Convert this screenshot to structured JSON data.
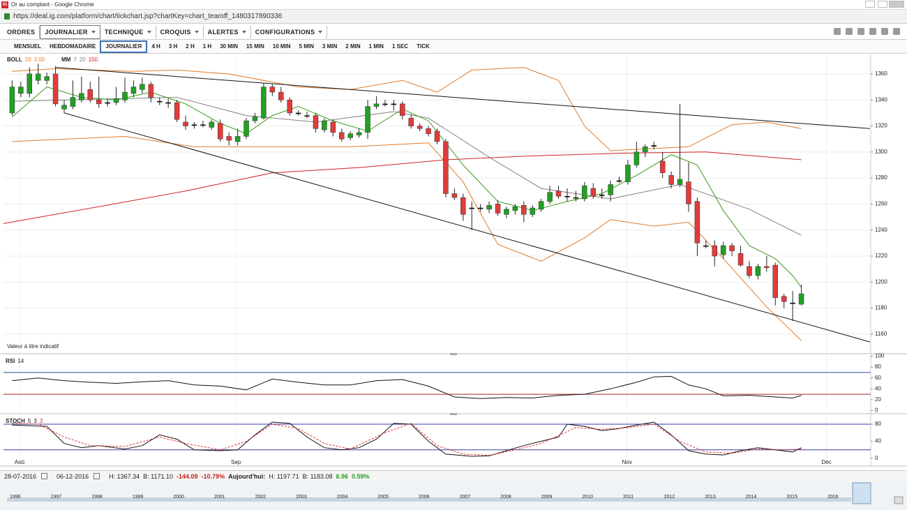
{
  "window": {
    "title": "Or au comptant - Google Chrome",
    "url": "https://deal.ig.com/platform/chart/tickchart.jsp?chartKey=chart_tearoff_1480317890336"
  },
  "menu": [
    "ORDRES",
    "JOURNALIER",
    "TECHNIQUE",
    "CROQUIS",
    "ALERTES",
    "CONFIGURATIONS"
  ],
  "timeframes": [
    "MENSUEL",
    "HEBDOMADAIRE",
    "JOURNALIER",
    "4 H",
    "3 H",
    "2 H",
    "1 H",
    "30 MIN",
    "15 MIN",
    "10 MIN",
    "5 MIN",
    "3 MIN",
    "2 MIN",
    "1 MIN",
    "1 SEC",
    "TICK"
  ],
  "status": {
    "start": "28-07-2016",
    "end": "06-12-2016",
    "high": "H: 1367.34",
    "low": "B: 1171.10",
    "change": "-144.09",
    "change_pct": "-10.79%",
    "today_label": "Aujourd'hui:",
    "today_high": "H: 1197.71",
    "today_low": "B: 1183.08",
    "today_change": "6.96",
    "today_change_pct": "0.59%"
  },
  "navigator_years": [
    "1996",
    "1997",
    "1998",
    "1999",
    "2000",
    "2001",
    "2002",
    "2003",
    "2004",
    "2005",
    "2006",
    "2007",
    "2008",
    "2009",
    "2010",
    "2011",
    "2012",
    "2013",
    "2014",
    "2015",
    "2016"
  ],
  "chart_data": [
    {
      "type": "candlestick",
      "indicators": [
        {
          "name": "BOLL",
          "params": [
            {
              "text": "20",
              "color": "#e07b2a"
            },
            {
              "text": "2.00",
              "color": "#e07b2a"
            }
          ]
        },
        {
          "name": "MM",
          "params": [
            {
              "text": "7",
              "color": "#3a9a1a"
            },
            {
              "text": "20",
              "color": "#808080"
            },
            {
              "text": "150",
              "color": "#d42020"
            }
          ]
        }
      ],
      "annotation": "Valeur à titre indicatif",
      "xlim": [
        -1,
        99
      ],
      "ylim": [
        1146,
        1375
      ],
      "yticks": [
        1160,
        1180,
        1200,
        1220,
        1240,
        1260,
        1280,
        1300,
        1320,
        1340,
        1360
      ],
      "grid": true,
      "up_color": "#22a022",
      "down_color": "#e23b3b",
      "doji_color": "#111111",
      "open": [
        1330,
        1345,
        1345,
        1355,
        1355,
        1360,
        1333,
        1335,
        1340,
        1348,
        1340,
        1338,
        1338,
        1340,
        1345,
        1348,
        1352,
        1339,
        1338,
        1338,
        1323,
        1321,
        1321,
        1319,
        1322,
        1312,
        1308,
        1312,
        1324,
        1326,
        1350,
        1346,
        1340,
        1330,
        1328,
        1328,
        1317,
        1323,
        1315,
        1311,
        1313,
        1315,
        1335,
        1337,
        1337,
        1337,
        1326,
        1320,
        1318,
        1316,
        1308,
        1268,
        1265,
        1257,
        1257,
        1256,
        1260,
        1252,
        1255,
        1259,
        1252,
        1256,
        1262,
        1270,
        1266,
        1265,
        1264,
        1272,
        1267,
        1267,
        1278,
        1277,
        1290,
        1300,
        1305,
        1293,
        1282,
        1275,
        1277,
        1262,
        1228,
        1228,
        1221,
        1228,
        1222,
        1212,
        1205,
        1212,
        1213,
        1189,
        1184,
        1183
      ],
      "high": [
        1355,
        1354,
        1365,
        1368,
        1361,
        1366,
        1340,
        1355,
        1358,
        1354,
        1358,
        1341,
        1350,
        1357,
        1355,
        1357,
        1354,
        1342,
        1341,
        1340,
        1328,
        1323,
        1324,
        1325,
        1325,
        1315,
        1318,
        1326,
        1330,
        1353,
        1352,
        1350,
        1342,
        1332,
        1331,
        1330,
        1326,
        1325,
        1318,
        1316,
        1318,
        1340,
        1343,
        1340,
        1340,
        1339,
        1329,
        1322,
        1320,
        1318,
        1310,
        1272,
        1268,
        1262,
        1260,
        1262,
        1263,
        1258,
        1260,
        1262,
        1259,
        1264,
        1274,
        1274,
        1272,
        1270,
        1277,
        1276,
        1272,
        1278,
        1281,
        1294,
        1308,
        1306,
        1308,
        1300,
        1285,
        1337,
        1292,
        1265,
        1232,
        1232,
        1231,
        1230,
        1228,
        1216,
        1214,
        1220,
        1215,
        1191,
        1193,
        1198
      ],
      "low": [
        1328,
        1342,
        1342,
        1352,
        1352,
        1335,
        1330,
        1333,
        1338,
        1338,
        1334,
        1335,
        1336,
        1338,
        1342,
        1345,
        1338,
        1336,
        1334,
        1323,
        1317,
        1318,
        1319,
        1317,
        1308,
        1305,
        1305,
        1310,
        1322,
        1325,
        1343,
        1338,
        1328,
        1328,
        1326,
        1315,
        1315,
        1312,
        1308,
        1309,
        1311,
        1310,
        1333,
        1335,
        1332,
        1325,
        1318,
        1316,
        1312,
        1306,
        1265,
        1263,
        1247,
        1240,
        1254,
        1253,
        1251,
        1249,
        1252,
        1246,
        1250,
        1254,
        1260,
        1264,
        1262,
        1262,
        1262,
        1264,
        1264,
        1262,
        1276,
        1275,
        1288,
        1296,
        1302,
        1280,
        1272,
        1273,
        1254,
        1220,
        1226,
        1212,
        1218,
        1220,
        1212,
        1203,
        1202,
        1208,
        1182,
        1180,
        1170,
        1182
      ],
      "close": [
        1350,
        1350,
        1360,
        1360,
        1358,
        1337,
        1336,
        1342,
        1345,
        1340,
        1337,
        1338,
        1341,
        1346,
        1350,
        1352,
        1342,
        1339,
        1338,
        1325,
        1320,
        1321,
        1321,
        1323,
        1310,
        1309,
        1312,
        1324,
        1327,
        1350,
        1346,
        1340,
        1330,
        1330,
        1328,
        1318,
        1324,
        1315,
        1310,
        1314,
        1315,
        1335,
        1337,
        1337,
        1337,
        1328,
        1320,
        1318,
        1314,
        1308,
        1268,
        1265,
        1252,
        1257,
        1257,
        1259,
        1253,
        1256,
        1258,
        1252,
        1257,
        1262,
        1269,
        1266,
        1266,
        1265,
        1274,
        1266,
        1267,
        1275,
        1278,
        1290,
        1300,
        1304,
        1305,
        1284,
        1275,
        1279,
        1260,
        1230,
        1228,
        1220,
        1228,
        1224,
        1213,
        1205,
        1212,
        1211,
        1188,
        1185,
        1184,
        1191
      ],
      "overlays": [
        {
          "color": "#d42020",
          "x": [
            -1,
            10,
            20,
            30,
            40,
            50,
            60,
            70,
            80,
            91
          ],
          "values": [
            1245,
            1258,
            1270,
            1284,
            1288,
            1294,
            1297,
            1299,
            1300,
            1294
          ]
        },
        {
          "color": "#e07b2a",
          "x": [
            0,
            5,
            14,
            19,
            25,
            33,
            39,
            45,
            49,
            53,
            59,
            63,
            66,
            69,
            78,
            83,
            87,
            91
          ],
          "values": [
            1362,
            1364,
            1362,
            1363,
            1360,
            1350,
            1348,
            1355,
            1346,
            1363,
            1365,
            1355,
            1320,
            1301,
            1304,
            1321,
            1323,
            1318
          ]
        },
        {
          "color": "#e07b2a",
          "x": [
            0,
            13,
            21,
            26,
            39,
            48,
            52,
            56,
            61,
            66,
            69,
            74,
            78,
            82,
            87,
            91
          ],
          "values": [
            1308,
            1312,
            1304,
            1304,
            1304,
            1307,
            1277,
            1229,
            1216,
            1234,
            1248,
            1243,
            1246,
            1218,
            1181,
            1155
          ]
        },
        {
          "color": "#808080",
          "x": [
            0,
            19,
            27,
            35,
            44,
            48,
            55,
            61,
            69,
            77,
            85,
            91
          ],
          "values": [
            1339,
            1342,
            1328,
            1323,
            1331,
            1326,
            1296,
            1272,
            1264,
            1275,
            1256,
            1236
          ]
        },
        {
          "color": "#3a9a1a",
          "x": [
            0,
            4,
            8,
            12,
            16,
            20,
            24,
            27,
            30,
            33,
            37,
            41,
            45,
            48,
            52,
            56,
            60,
            64,
            68,
            72,
            76,
            79,
            82,
            85,
            88,
            90,
            91
          ],
          "values": [
            1327,
            1350,
            1342,
            1340,
            1346,
            1337,
            1322,
            1314,
            1328,
            1335,
            1324,
            1316,
            1333,
            1324,
            1290,
            1262,
            1255,
            1262,
            1268,
            1282,
            1298,
            1290,
            1255,
            1228,
            1218,
            1205,
            1196
          ]
        },
        {
          "color": "#111111",
          "x": [
            5,
            98.9
          ],
          "values": [
            1365,
            1318
          ]
        },
        {
          "color": "#111111",
          "x": [
            6,
            98.9
          ],
          "values": [
            1330,
            1154
          ]
        }
      ]
    },
    {
      "type": "line",
      "indicator": {
        "name": "RSI",
        "params": [
          {
            "text": "14",
            "color": "#111111"
          }
        ]
      },
      "xlim": [
        -1,
        99
      ],
      "ylim": [
        -2,
        102
      ],
      "yticks": [
        0,
        20,
        40,
        60,
        80,
        100
      ],
      "levels": [
        {
          "value": 70,
          "color": "#2a4a9a"
        },
        {
          "value": 30,
          "color": "#b02020"
        }
      ],
      "series": [
        {
          "color": "#111111",
          "x": [
            0,
            3,
            6,
            9,
            12,
            15,
            18,
            21,
            24,
            27,
            30,
            33,
            36,
            39,
            42,
            45,
            48,
            51,
            54,
            57,
            60,
            63,
            66,
            69,
            72,
            74,
            76,
            78,
            80,
            82,
            85,
            88,
            90,
            91
          ],
          "values": [
            55,
            60,
            55,
            52,
            50,
            53,
            55,
            47,
            45,
            38,
            58,
            52,
            47,
            47,
            55,
            57,
            45,
            25,
            22,
            24,
            23,
            28,
            30,
            40,
            52,
            62,
            63,
            47,
            40,
            27,
            28,
            25,
            23,
            28
          ]
        }
      ]
    },
    {
      "type": "line",
      "indicator": {
        "name": "STOCH",
        "params": [
          {
            "text": "5",
            "color": "#111111"
          },
          {
            "text": "3",
            "color": "#111111"
          },
          {
            "text": "3",
            "color": "#e03030"
          }
        ]
      },
      "xlim": [
        -1,
        99
      ],
      "ylim": [
        -13,
        98
      ],
      "yticks": [
        0,
        40,
        80
      ],
      "xticks": [
        {
          "value": 0.85,
          "label": "Aoû"
        },
        {
          "value": 25.8,
          "label": "Sep"
        },
        {
          "value": 70.9,
          "label": "Nov"
        },
        {
          "value": 93.9,
          "label": "Déc"
        }
      ],
      "levels": [
        {
          "value": 80,
          "color": "#3a3aa8"
        },
        {
          "value": 20,
          "color": "#3a3aa8"
        }
      ],
      "series": [
        {
          "color": "#111111",
          "x": [
            0,
            4,
            6,
            8,
            10,
            13,
            15,
            17,
            19,
            21,
            24,
            26,
            28,
            30,
            32,
            34,
            36,
            38,
            40,
            42,
            44,
            46,
            48,
            50,
            53,
            55,
            57,
            59,
            61,
            63,
            64,
            66,
            68,
            70,
            72,
            74,
            76,
            78,
            80,
            82,
            84,
            86,
            88,
            90,
            91
          ],
          "values": [
            78,
            75,
            35,
            25,
            30,
            22,
            30,
            55,
            45,
            20,
            18,
            20,
            55,
            85,
            82,
            50,
            25,
            20,
            25,
            45,
            82,
            80,
            40,
            10,
            5,
            6,
            18,
            30,
            40,
            50,
            80,
            75,
            65,
            70,
            78,
            85,
            55,
            18,
            10,
            8,
            18,
            25,
            20,
            15,
            25
          ]
        },
        {
          "color": "#e03030",
          "dash": true,
          "x": [
            0,
            3,
            6,
            9,
            13,
            17,
            20,
            24,
            27,
            30,
            33,
            36,
            39,
            43,
            46,
            49,
            52,
            55,
            58,
            61,
            65,
            68,
            71,
            74,
            77,
            80,
            83,
            86,
            89,
            91
          ],
          "values": [
            82,
            80,
            50,
            30,
            28,
            50,
            35,
            20,
            40,
            80,
            70,
            35,
            22,
            60,
            82,
            30,
            10,
            7,
            20,
            35,
            72,
            68,
            72,
            80,
            40,
            15,
            12,
            22,
            20,
            22
          ]
        }
      ]
    }
  ]
}
